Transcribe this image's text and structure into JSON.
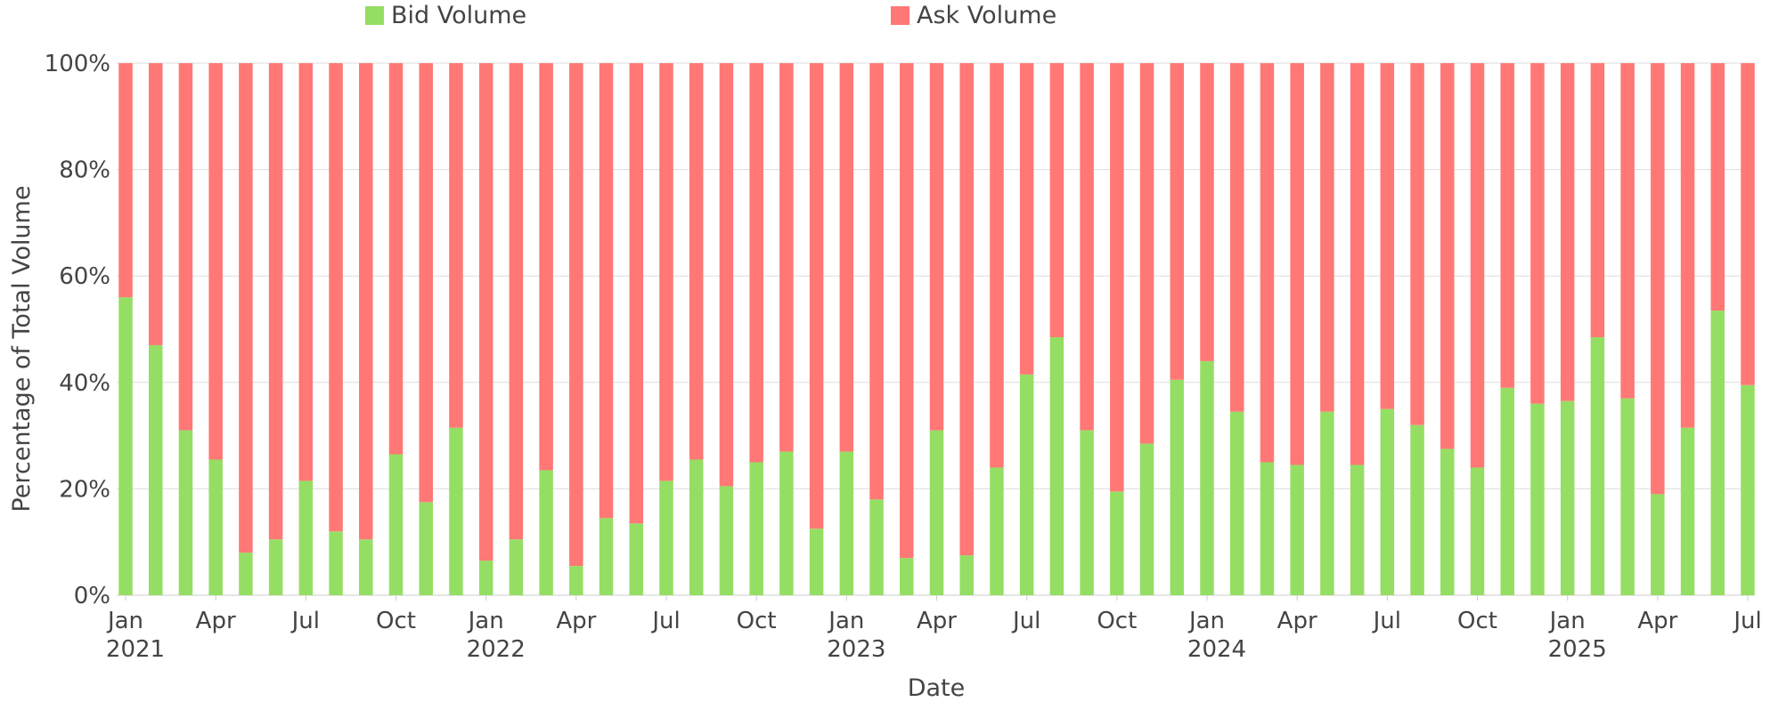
{
  "chart_data": {
    "type": "bar",
    "stacked": true,
    "normalized": true,
    "xlabel": "Date",
    "ylabel": "Percentage of Total Volume",
    "ylim": [
      0,
      100
    ],
    "y_ticks": [
      "0%",
      "20%",
      "40%",
      "60%",
      "80%",
      "100%"
    ],
    "x_ticks": [
      {
        "month": "Jan",
        "year": "2021",
        "index": 0
      },
      {
        "month": "Apr",
        "year": "",
        "index": 3
      },
      {
        "month": "Jul",
        "year": "",
        "index": 6
      },
      {
        "month": "Oct",
        "year": "",
        "index": 9
      },
      {
        "month": "Jan",
        "year": "2022",
        "index": 12
      },
      {
        "month": "Apr",
        "year": "",
        "index": 15
      },
      {
        "month": "Jul",
        "year": "",
        "index": 18
      },
      {
        "month": "Oct",
        "year": "",
        "index": 21
      },
      {
        "month": "Jan",
        "year": "2023",
        "index": 24
      },
      {
        "month": "Apr",
        "year": "",
        "index": 27
      },
      {
        "month": "Jul",
        "year": "",
        "index": 30
      },
      {
        "month": "Oct",
        "year": "",
        "index": 33
      },
      {
        "month": "Jan",
        "year": "2024",
        "index": 36
      },
      {
        "month": "Apr",
        "year": "",
        "index": 39
      },
      {
        "month": "Jul",
        "year": "",
        "index": 42
      },
      {
        "month": "Oct",
        "year": "",
        "index": 45
      },
      {
        "month": "Jan",
        "year": "2025",
        "index": 48
      },
      {
        "month": "Apr",
        "year": "",
        "index": 51
      },
      {
        "month": "Jul",
        "year": "",
        "index": 54
      }
    ],
    "categories": [
      "2021-01",
      "2021-02",
      "2021-03",
      "2021-04",
      "2021-05",
      "2021-06",
      "2021-07",
      "2021-08",
      "2021-09",
      "2021-10",
      "2021-11",
      "2021-12",
      "2022-01",
      "2022-02",
      "2022-03",
      "2022-04",
      "2022-05",
      "2022-06",
      "2022-07",
      "2022-08",
      "2022-09",
      "2022-10",
      "2022-11",
      "2022-12",
      "2023-01",
      "2023-02",
      "2023-03",
      "2023-04",
      "2023-05",
      "2023-06",
      "2023-07",
      "2023-08",
      "2023-09",
      "2023-10",
      "2023-11",
      "2023-12",
      "2024-01",
      "2024-02",
      "2024-03",
      "2024-04",
      "2024-05",
      "2024-06",
      "2024-07",
      "2024-08",
      "2024-09",
      "2024-10",
      "2024-11",
      "2024-12",
      "2025-01",
      "2025-02",
      "2025-03",
      "2025-04",
      "2025-05",
      "2025-06",
      "2025-07"
    ],
    "legend_position": "top",
    "grid": true,
    "series": [
      {
        "name": "Bid Volume",
        "color": "#95de64",
        "values": [
          56,
          47,
          31,
          25.5,
          8,
          10.5,
          21.5,
          12,
          10.5,
          26.5,
          17.5,
          31.5,
          6.5,
          10.5,
          23.5,
          5.5,
          14.5,
          13.5,
          21.5,
          25.5,
          20.5,
          25,
          27,
          12.5,
          27,
          18,
          7,
          31,
          7.5,
          24,
          41.5,
          48.5,
          31,
          19.5,
          28.5,
          40.5,
          44,
          34.5,
          25,
          24.5,
          34.5,
          24.5,
          35,
          32,
          27.5,
          24,
          39,
          36,
          36.5,
          48.5,
          37,
          19,
          31.5,
          53.5,
          39.5
        ]
      },
      {
        "name": "Ask Volume",
        "color": "#ff7875",
        "values": [
          44,
          53,
          69,
          74.5,
          92,
          89.5,
          78.5,
          88,
          89.5,
          73.5,
          82.5,
          68.5,
          93.5,
          89.5,
          76.5,
          94.5,
          85.5,
          86.5,
          78.5,
          74.5,
          79.5,
          75,
          73,
          87.5,
          73,
          82,
          93,
          69,
          92.5,
          76,
          58.5,
          51.5,
          69,
          80.5,
          71.5,
          59.5,
          56,
          65.5,
          75,
          75.5,
          65.5,
          75.5,
          65,
          68,
          72.5,
          76,
          61,
          64,
          63.5,
          51.5,
          63,
          81,
          68.5,
          46.5,
          60.5
        ]
      }
    ]
  }
}
